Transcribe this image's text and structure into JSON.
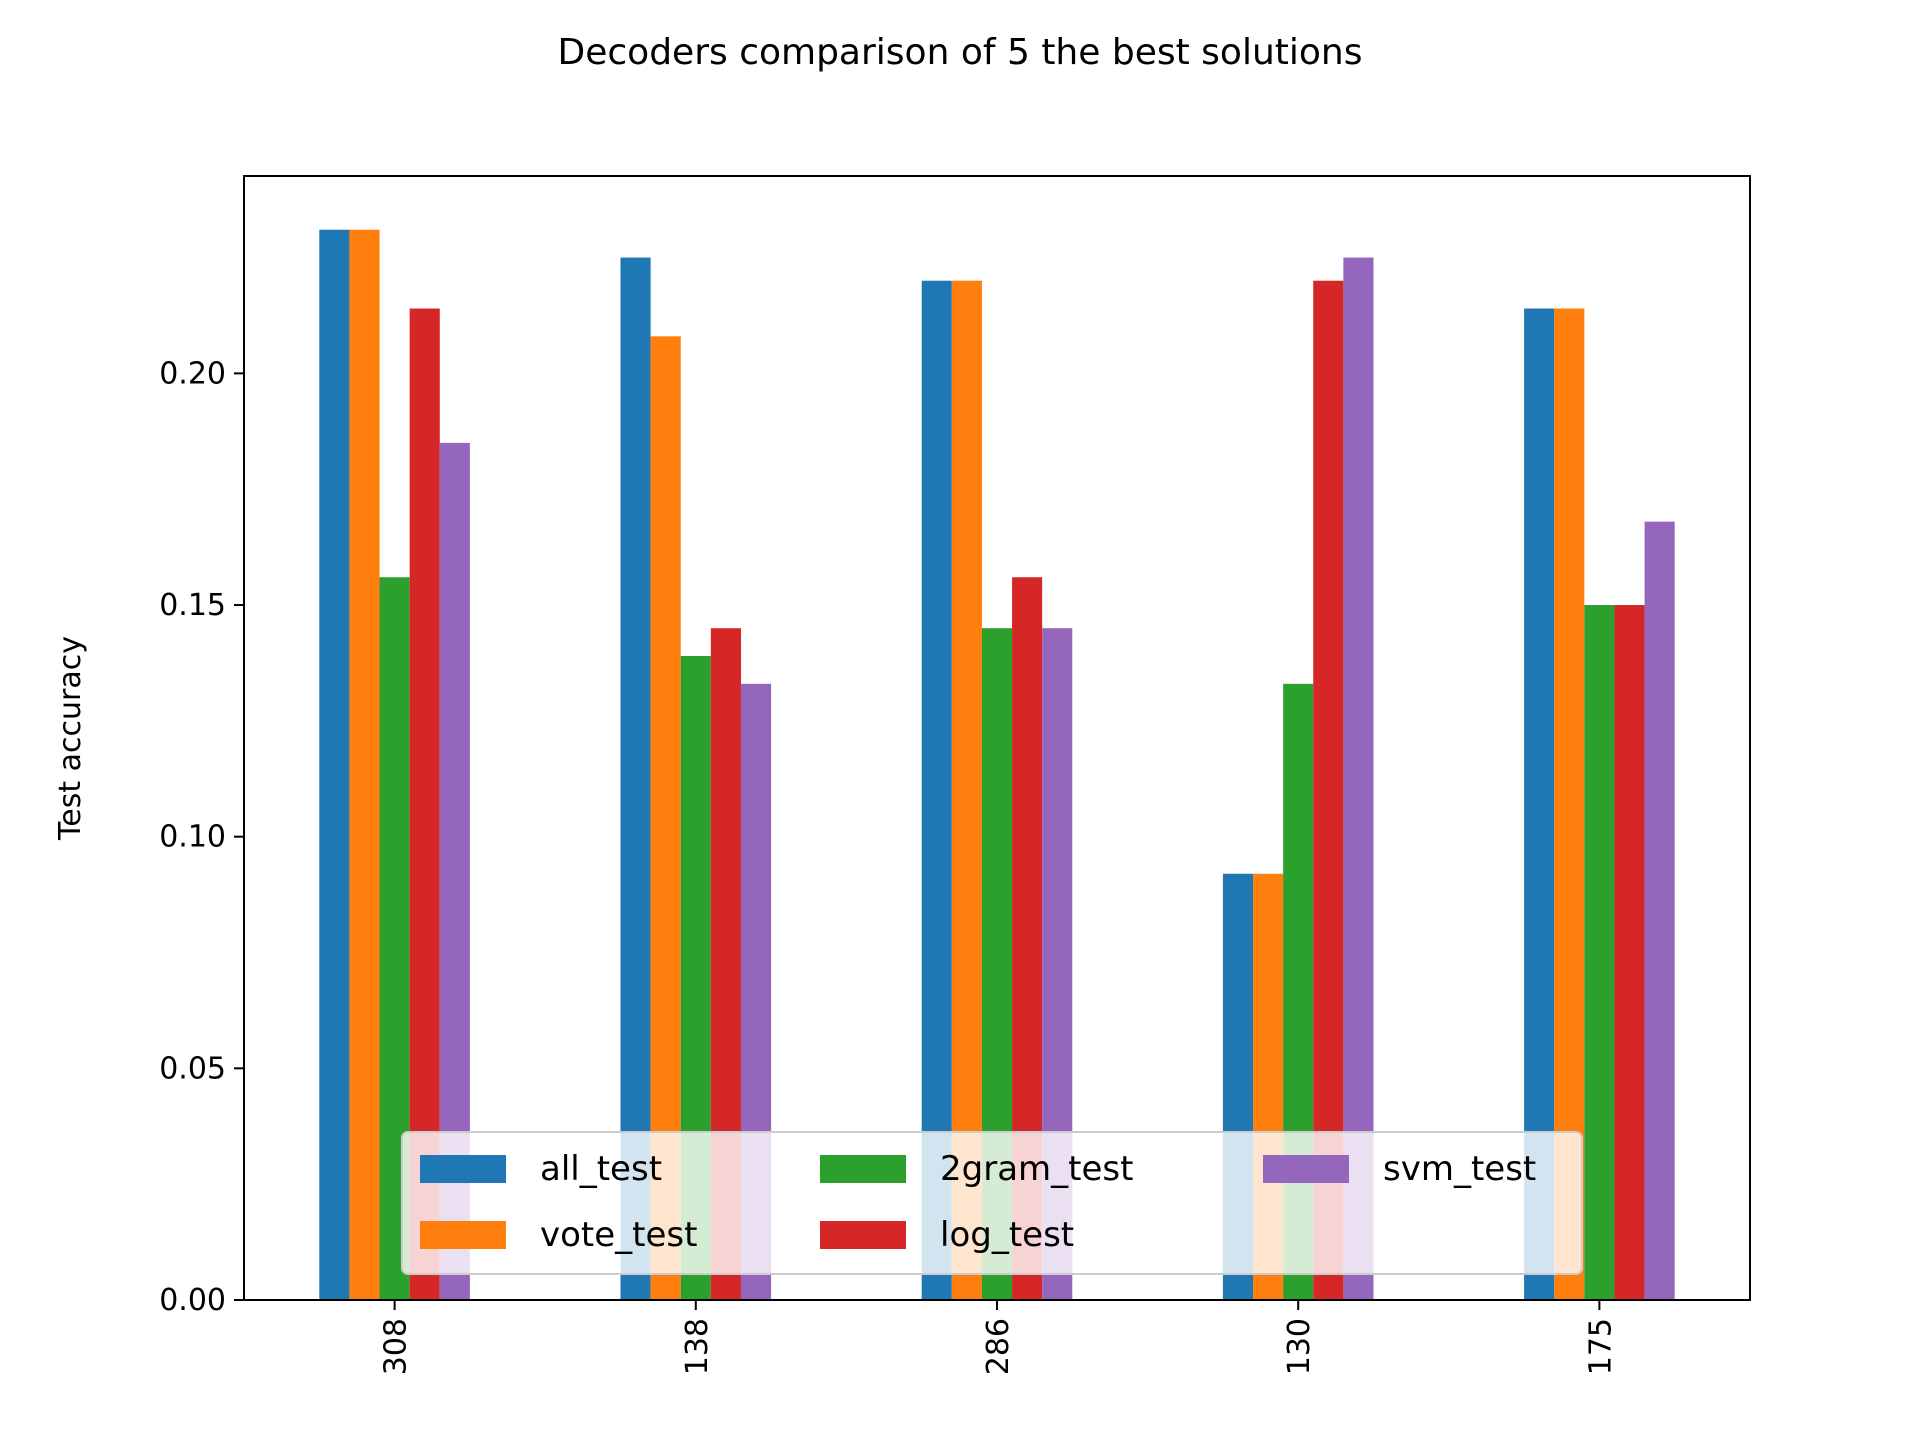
{
  "chart_data": {
    "type": "bar",
    "title": "Decoders comparison of 5 the best solutions",
    "xlabel": "",
    "ylabel": "Test accuracy",
    "categories": [
      "308",
      "138",
      "286",
      "130",
      "175"
    ],
    "ylim": [
      0,
      0.2426
    ],
    "yticks": [
      "0.00",
      "0.05",
      "0.10",
      "0.15",
      "0.20"
    ],
    "grid": false,
    "legend_position": "lower center",
    "series": [
      {
        "name": "all_test",
        "color": "#1f77b4",
        "values": [
          0.231,
          0.225,
          0.22,
          0.092,
          0.214
        ]
      },
      {
        "name": "vote_test",
        "color": "#ff7f0e",
        "values": [
          0.231,
          0.208,
          0.22,
          0.092,
          0.214
        ]
      },
      {
        "name": "2gram_test",
        "color": "#2ca02c",
        "values": [
          0.156,
          0.139,
          0.145,
          0.133,
          0.15
        ]
      },
      {
        "name": "log_test",
        "color": "#d62728",
        "values": [
          0.214,
          0.145,
          0.156,
          0.22,
          0.15
        ]
      },
      {
        "name": "svm_test",
        "color": "#9467bd",
        "values": [
          0.185,
          0.133,
          0.145,
          0.225,
          0.168
        ]
      }
    ]
  }
}
